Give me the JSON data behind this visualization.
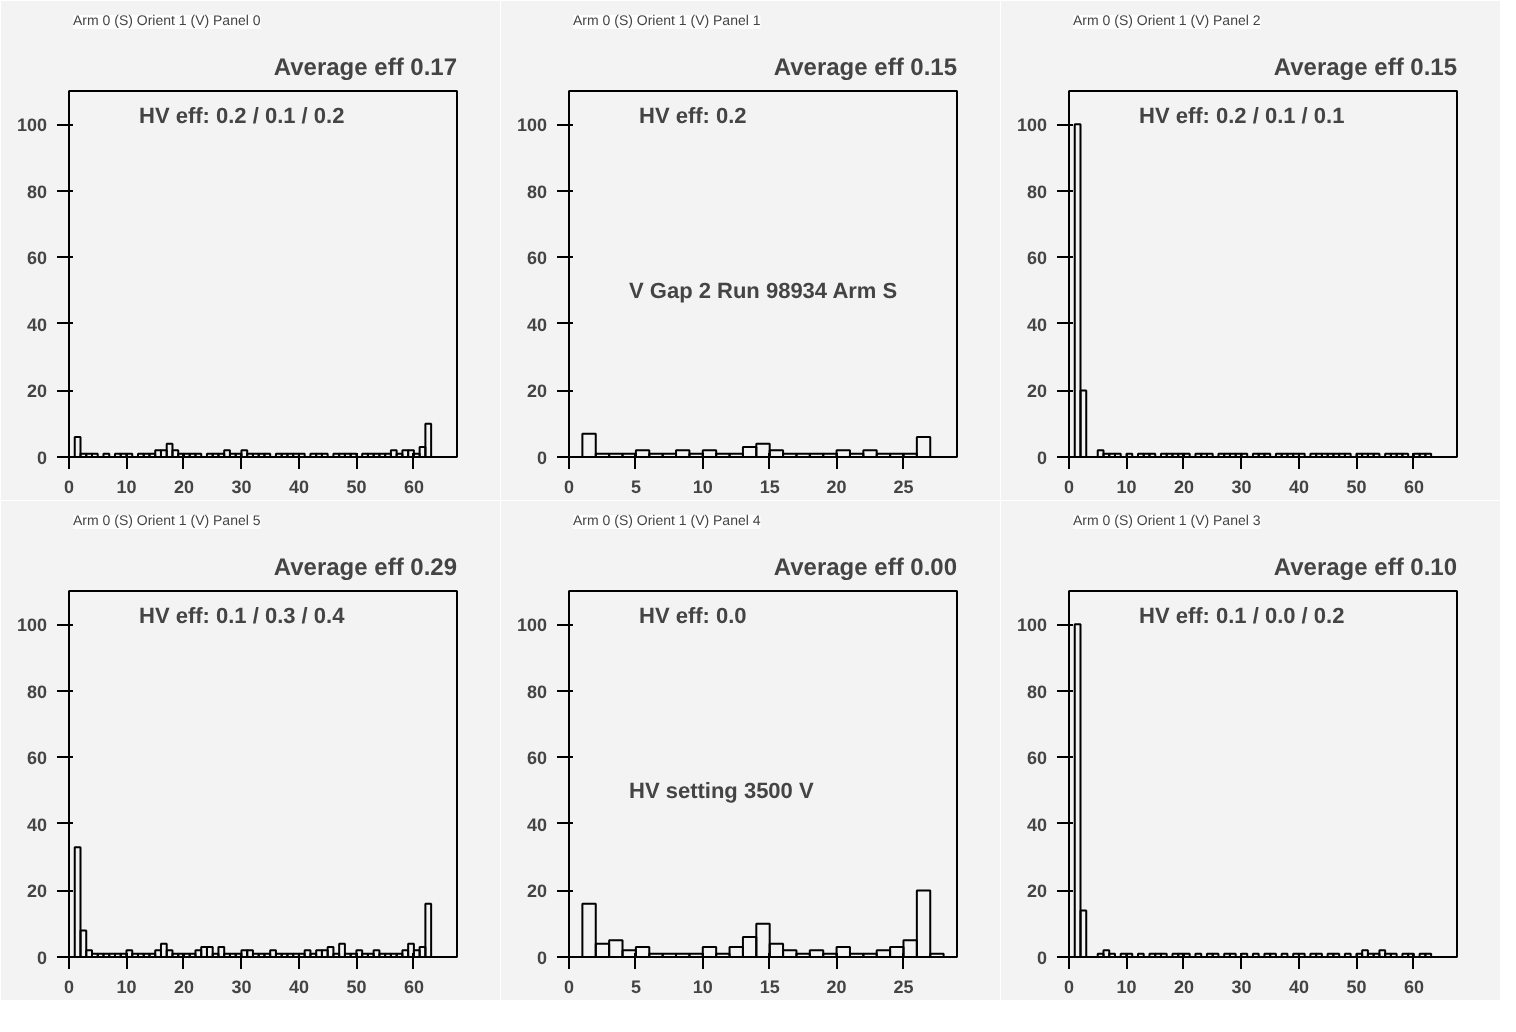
{
  "chart_data": [
    {
      "type": "histogram",
      "title": "Arm 0 (S) Orient 1 (V) Panel 0",
      "subtitle": "Average eff 0.17",
      "annotations": [
        "HV eff:   0.2 / 0.1 / 0.2"
      ],
      "color": "#000000",
      "bins": [
        0,
        1,
        2,
        3,
        4,
        5,
        6,
        7,
        8,
        9,
        10,
        11,
        12,
        13,
        14,
        15,
        16,
        17,
        18,
        19,
        20,
        21,
        22,
        23,
        24,
        25,
        26,
        27,
        28,
        29,
        30,
        31,
        32,
        33,
        34,
        35,
        36,
        37,
        38,
        39,
        40,
        41,
        42,
        43,
        44,
        45,
        46,
        47,
        48,
        49,
        50,
        51,
        52,
        53,
        54,
        55,
        56,
        57,
        58,
        59,
        60,
        61,
        62,
        63,
        64
      ],
      "values": [
        0,
        6,
        1,
        1,
        1,
        0,
        1,
        0,
        1,
        1,
        1,
        0,
        1,
        1,
        1,
        2,
        2,
        4,
        2,
        1,
        1,
        1,
        1,
        0,
        1,
        1,
        1,
        2,
        1,
        1,
        2,
        1,
        1,
        1,
        1,
        0,
        1,
        1,
        1,
        1,
        1,
        0,
        1,
        1,
        1,
        0,
        1,
        1,
        1,
        1,
        0,
        1,
        1,
        1,
        1,
        1,
        2,
        1,
        2,
        2,
        1,
        3,
        10,
        0
      ],
      "xlim": [
        0,
        67.5
      ],
      "ylim": [
        0,
        110
      ],
      "xticks": [
        0,
        10,
        20,
        30,
        40,
        50,
        60
      ],
      "yticks": [
        0,
        20,
        40,
        60,
        80,
        100
      ],
      "grid": false
    },
    {
      "type": "histogram",
      "title": "Arm 0 (S) Orient 1 (V) Panel 1",
      "subtitle": "Average eff 0.15",
      "annotations": [
        "HV eff:   0.2",
        "V Gap 2 Run 98934 Arm S"
      ],
      "color": "#000000",
      "bins": [
        0,
        1,
        2,
        3,
        4,
        5,
        6,
        7,
        8,
        9,
        10,
        11,
        12,
        13,
        14,
        15,
        16,
        17,
        18,
        19,
        20,
        21,
        22,
        23,
        24,
        25,
        26,
        27,
        28
      ],
      "values": [
        0,
        7,
        1,
        1,
        1,
        2,
        1,
        1,
        2,
        1,
        2,
        1,
        1,
        3,
        4,
        2,
        1,
        1,
        1,
        1,
        2,
        1,
        2,
        1,
        1,
        1,
        6,
        0
      ],
      "xlim": [
        0,
        29
      ],
      "ylim": [
        0,
        110
      ],
      "xticks": [
        0,
        5,
        10,
        15,
        20,
        25
      ],
      "yticks": [
        0,
        20,
        40,
        60,
        80,
        100
      ],
      "grid": false
    },
    {
      "type": "histogram",
      "title": "Arm 0 (S) Orient 1 (V) Panel 2",
      "subtitle": "Average eff 0.15",
      "annotations": [
        "HV eff:   0.2 / 0.1 / 0.1"
      ],
      "color": "#000000",
      "bins": [
        0,
        1,
        2,
        3,
        4,
        5,
        6,
        7,
        8,
        9,
        10,
        11,
        12,
        13,
        14,
        15,
        16,
        17,
        18,
        19,
        20,
        21,
        22,
        23,
        24,
        25,
        26,
        27,
        28,
        29,
        30,
        31,
        32,
        33,
        34,
        35,
        36,
        37,
        38,
        39,
        40,
        41,
        42,
        43,
        44,
        45,
        46,
        47,
        48,
        49,
        50,
        51,
        52,
        53,
        54,
        55,
        56,
        57,
        58,
        59,
        60,
        61,
        62,
        63,
        64
      ],
      "values": [
        0,
        100,
        20,
        0,
        0,
        2,
        1,
        1,
        1,
        0,
        1,
        0,
        1,
        1,
        1,
        0,
        1,
        1,
        1,
        1,
        1,
        0,
        1,
        1,
        1,
        0,
        1,
        1,
        1,
        1,
        1,
        0,
        1,
        1,
        1,
        0,
        1,
        1,
        1,
        1,
        1,
        0,
        1,
        1,
        1,
        1,
        1,
        1,
        1,
        0,
        1,
        1,
        1,
        1,
        0,
        1,
        1,
        1,
        1,
        0,
        1,
        1,
        1,
        0
      ],
      "xlim": [
        0,
        67.5
      ],
      "ylim": [
        0,
        110
      ],
      "xticks": [
        0,
        10,
        20,
        30,
        40,
        50,
        60
      ],
      "yticks": [
        0,
        20,
        40,
        60,
        80,
        100
      ],
      "grid": false
    },
    {
      "type": "histogram",
      "title": "Arm 0 (S) Orient 1 (V) Panel 5",
      "subtitle": "Average eff 0.29",
      "annotations": [
        "HV eff:   0.1 / 0.3 / 0.4"
      ],
      "color": "#000000",
      "bins": [
        0,
        1,
        2,
        3,
        4,
        5,
        6,
        7,
        8,
        9,
        10,
        11,
        12,
        13,
        14,
        15,
        16,
        17,
        18,
        19,
        20,
        21,
        22,
        23,
        24,
        25,
        26,
        27,
        28,
        29,
        30,
        31,
        32,
        33,
        34,
        35,
        36,
        37,
        38,
        39,
        40,
        41,
        42,
        43,
        44,
        45,
        46,
        47,
        48,
        49,
        50,
        51,
        52,
        53,
        54,
        55,
        56,
        57,
        58,
        59,
        60,
        61,
        62,
        63,
        64
      ],
      "values": [
        0,
        33,
        8,
        2,
        1,
        1,
        1,
        1,
        1,
        1,
        2,
        1,
        1,
        1,
        1,
        2,
        4,
        2,
        1,
        1,
        1,
        1,
        2,
        3,
        3,
        1,
        3,
        1,
        1,
        1,
        2,
        2,
        1,
        1,
        1,
        2,
        1,
        1,
        1,
        1,
        1,
        2,
        1,
        2,
        2,
        3,
        1,
        4,
        1,
        1,
        2,
        1,
        1,
        2,
        1,
        1,
        1,
        1,
        2,
        4,
        2,
        3,
        16,
        0
      ],
      "xlim": [
        0,
        67.5
      ],
      "ylim": [
        0,
        110
      ],
      "xticks": [
        0,
        10,
        20,
        30,
        40,
        50,
        60
      ],
      "yticks": [
        0,
        20,
        40,
        60,
        80,
        100
      ],
      "grid": false
    },
    {
      "type": "histogram",
      "title": "Arm 0 (S) Orient 1 (V) Panel 4",
      "subtitle": "Average eff 0.00",
      "annotations": [
        "HV eff:   0.0",
        "HV setting 3500 V"
      ],
      "color": "#000000",
      "bins": [
        0,
        1,
        2,
        3,
        4,
        5,
        6,
        7,
        8,
        9,
        10,
        11,
        12,
        13,
        14,
        15,
        16,
        17,
        18,
        19,
        20,
        21,
        22,
        23,
        24,
        25,
        26,
        27,
        28
      ],
      "values": [
        0,
        16,
        4,
        5,
        2,
        3,
        1,
        1,
        1,
        1,
        3,
        1,
        3,
        6,
        10,
        4,
        2,
        1,
        2,
        1,
        3,
        1,
        1,
        2,
        3,
        5,
        20,
        1
      ],
      "xlim": [
        0,
        29
      ],
      "ylim": [
        0,
        110
      ],
      "xticks": [
        0,
        5,
        10,
        15,
        20,
        25
      ],
      "yticks": [
        0,
        20,
        40,
        60,
        80,
        100
      ],
      "grid": false
    },
    {
      "type": "histogram",
      "title": "Arm 0 (S) Orient 1 (V) Panel 3",
      "subtitle": "Average eff 0.10",
      "annotations": [
        "HV eff:   0.1 / 0.0 / 0.2"
      ],
      "color": "#000000",
      "bins": [
        0,
        1,
        2,
        3,
        4,
        5,
        6,
        7,
        8,
        9,
        10,
        11,
        12,
        13,
        14,
        15,
        16,
        17,
        18,
        19,
        20,
        21,
        22,
        23,
        24,
        25,
        26,
        27,
        28,
        29,
        30,
        31,
        32,
        33,
        34,
        35,
        36,
        37,
        38,
        39,
        40,
        41,
        42,
        43,
        44,
        45,
        46,
        47,
        48,
        49,
        50,
        51,
        52,
        53,
        54,
        55,
        56,
        57,
        58,
        59,
        60,
        61,
        62,
        63,
        64
      ],
      "values": [
        0,
        100,
        14,
        0,
        0,
        1,
        2,
        1,
        0,
        1,
        1,
        0,
        1,
        0,
        1,
        1,
        1,
        0,
        1,
        1,
        1,
        0,
        1,
        0,
        1,
        1,
        0,
        1,
        1,
        0,
        1,
        0,
        1,
        0,
        1,
        1,
        0,
        1,
        0,
        1,
        1,
        0,
        1,
        1,
        0,
        1,
        1,
        0,
        1,
        0,
        1,
        2,
        1,
        1,
        2,
        1,
        1,
        0,
        1,
        1,
        0,
        1,
        1,
        0
      ],
      "xlim": [
        0,
        67.5
      ],
      "ylim": [
        0,
        110
      ],
      "xticks": [
        0,
        10,
        20,
        30,
        40,
        50,
        60
      ],
      "yticks": [
        0,
        20,
        40,
        60,
        80,
        100
      ],
      "grid": false
    }
  ]
}
